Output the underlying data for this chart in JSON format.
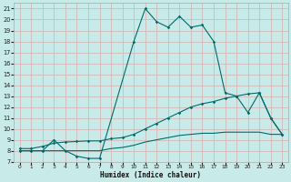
{
  "xlabel": "Humidex (Indice chaleur)",
  "background_color": "#c8eae8",
  "grid_color": "#d4b8b8",
  "line_color": "#006b6b",
  "xlim": [
    -0.5,
    23.5
  ],
  "ylim": [
    7,
    21.5
  ],
  "xticks": [
    0,
    1,
    2,
    3,
    4,
    5,
    6,
    7,
    8,
    9,
    10,
    11,
    12,
    13,
    14,
    15,
    16,
    17,
    18,
    19,
    20,
    21,
    22,
    23
  ],
  "yticks": [
    7,
    8,
    9,
    10,
    11,
    12,
    13,
    14,
    15,
    16,
    17,
    18,
    19,
    20,
    21
  ],
  "line1_x": [
    0,
    1,
    2,
    3,
    4,
    5,
    6,
    7,
    10,
    11,
    12,
    13,
    14,
    15,
    16,
    17,
    18,
    19,
    20,
    21,
    22,
    23
  ],
  "line1_y": [
    8.0,
    8.0,
    8.0,
    9.0,
    8.0,
    7.5,
    7.3,
    7.3,
    18.0,
    21.0,
    19.8,
    19.3,
    20.3,
    19.3,
    19.5,
    18.0,
    13.3,
    13.0,
    11.5,
    13.3,
    11.0,
    9.5
  ],
  "line2_x": [
    0,
    1,
    2,
    3,
    4,
    5,
    6,
    7,
    8,
    9,
    10,
    11,
    12,
    13,
    14,
    15,
    16,
    17,
    18,
    19,
    20,
    21,
    22,
    23
  ],
  "line2_y": [
    8.2,
    8.2,
    8.4,
    8.7,
    8.8,
    8.85,
    8.9,
    8.9,
    9.1,
    9.2,
    9.5,
    10.0,
    10.5,
    11.0,
    11.5,
    12.0,
    12.3,
    12.5,
    12.8,
    13.0,
    13.2,
    13.3,
    11.0,
    9.5
  ],
  "line3_x": [
    0,
    1,
    2,
    3,
    4,
    5,
    6,
    7,
    8,
    9,
    10,
    11,
    12,
    13,
    14,
    15,
    16,
    17,
    18,
    19,
    20,
    21,
    22,
    23
  ],
  "line3_y": [
    8.0,
    8.0,
    8.0,
    8.0,
    8.0,
    8.0,
    8.0,
    8.0,
    8.2,
    8.3,
    8.5,
    8.8,
    9.0,
    9.2,
    9.4,
    9.5,
    9.6,
    9.6,
    9.7,
    9.7,
    9.7,
    9.7,
    9.5,
    9.5
  ]
}
